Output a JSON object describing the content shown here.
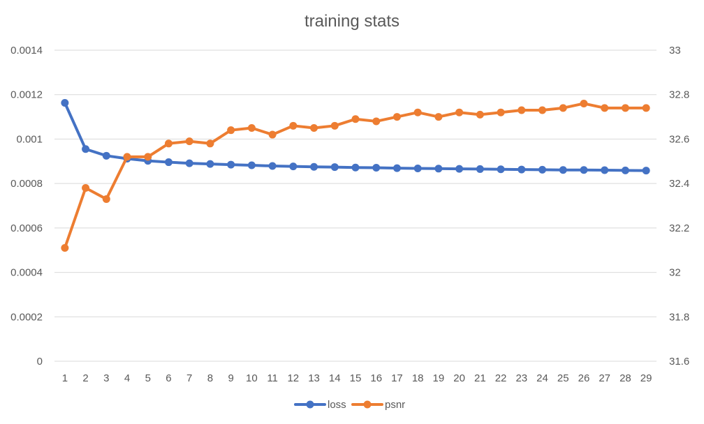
{
  "chart_data": {
    "type": "line",
    "title": "training stats",
    "xlabel": "",
    "ylabel": "",
    "categories": [
      "1",
      "2",
      "3",
      "4",
      "5",
      "6",
      "7",
      "8",
      "9",
      "10",
      "11",
      "12",
      "13",
      "14",
      "15",
      "16",
      "17",
      "18",
      "19",
      "20",
      "21",
      "22",
      "23",
      "24",
      "25",
      "26",
      "27",
      "28",
      "29"
    ],
    "y_left": {
      "min": 0,
      "max": 0.0014,
      "step": 0.0002,
      "tick_labels": [
        "0",
        "0.0002",
        "0.0004",
        "0.0006",
        "0.0008",
        "0.001",
        "0.0012",
        "0.0014"
      ]
    },
    "y_right": {
      "min": 31.6,
      "max": 33,
      "step": 0.2,
      "tick_labels": [
        "31.6",
        "31.8",
        "32",
        "32.2",
        "32.4",
        "32.6",
        "32.8",
        "33"
      ]
    },
    "grid": true,
    "legend_position": "bottom",
    "series": [
      {
        "name": "loss",
        "axis": "left",
        "color": "#4472C4",
        "values": [
          0.001163,
          0.000955,
          0.000925,
          0.000912,
          0.000902,
          0.000896,
          0.000891,
          0.000888,
          0.000885,
          0.000882,
          0.000879,
          0.000877,
          0.000875,
          0.000874,
          0.000872,
          0.000871,
          0.000869,
          0.000868,
          0.000867,
          0.000866,
          0.000865,
          0.000864,
          0.000863,
          0.000862,
          0.000861,
          0.000861,
          0.00086,
          0.000859,
          0.000858
        ]
      },
      {
        "name": "psnr",
        "axis": "right",
        "color": "#ED7D31",
        "values": [
          32.11,
          32.38,
          32.33,
          32.52,
          32.52,
          32.58,
          32.59,
          32.58,
          32.64,
          32.65,
          32.62,
          32.66,
          32.65,
          32.66,
          32.69,
          32.68,
          32.7,
          32.72,
          32.7,
          32.72,
          32.71,
          32.72,
          32.73,
          32.73,
          32.74,
          32.76,
          32.74,
          32.74,
          32.74
        ]
      }
    ]
  }
}
